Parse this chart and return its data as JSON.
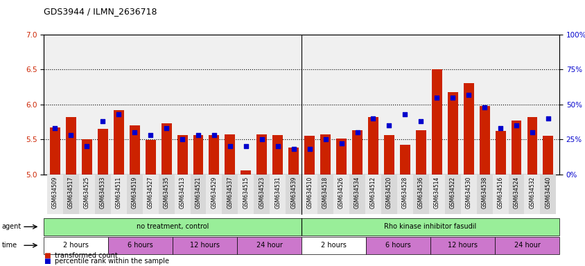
{
  "title": "GDS3944 / ILMN_2636718",
  "samples": [
    "GSM634509",
    "GSM634517",
    "GSM634525",
    "GSM634533",
    "GSM634511",
    "GSM634519",
    "GSM634527",
    "GSM634535",
    "GSM634513",
    "GSM634521",
    "GSM634529",
    "GSM634537",
    "GSM634515",
    "GSM634523",
    "GSM634531",
    "GSM634539",
    "GSM634510",
    "GSM634518",
    "GSM634526",
    "GSM634534",
    "GSM634512",
    "GSM634520",
    "GSM634528",
    "GSM634536",
    "GSM634514",
    "GSM634522",
    "GSM634530",
    "GSM634538",
    "GSM634516",
    "GSM634524",
    "GSM634532",
    "GSM634540"
  ],
  "bar_values": [
    5.67,
    5.82,
    5.5,
    5.65,
    5.92,
    5.7,
    5.49,
    5.73,
    5.56,
    5.56,
    5.56,
    5.57,
    5.05,
    5.57,
    5.56,
    5.38,
    5.55,
    5.57,
    5.51,
    5.63,
    5.82,
    5.56,
    5.42,
    5.63,
    6.5,
    6.18,
    6.3,
    5.98,
    5.62,
    5.77,
    5.82,
    5.55
  ],
  "percentile_values": [
    33,
    28,
    20,
    38,
    43,
    30,
    28,
    33,
    25,
    28,
    28,
    20,
    20,
    25,
    20,
    18,
    18,
    25,
    22,
    30,
    40,
    35,
    43,
    38,
    55,
    55,
    57,
    48,
    33,
    35,
    30,
    40
  ],
  "bar_color": "#cc2200",
  "dot_color": "#0000cc",
  "ylim_left": [
    5.0,
    7.0
  ],
  "ylim_right": [
    0,
    100
  ],
  "yticks_left": [
    5.0,
    5.5,
    6.0,
    6.5,
    7.0
  ],
  "yticks_right": [
    0,
    25,
    50,
    75,
    100
  ],
  "agent_groups": [
    {
      "label": "no treatment, control",
      "start": 0,
      "end": 16
    },
    {
      "label": "Rho kinase inhibitor fasudil",
      "start": 16,
      "end": 32
    }
  ],
  "agent_color": "#99ee99",
  "time_groups": [
    {
      "label": "2 hours",
      "start": 0,
      "end": 4,
      "color": "#ffffff"
    },
    {
      "label": "6 hours",
      "start": 4,
      "end": 8,
      "color": "#cc77cc"
    },
    {
      "label": "12 hours",
      "start": 8,
      "end": 12,
      "color": "#cc77cc"
    },
    {
      "label": "24 hour",
      "start": 12,
      "end": 16,
      "color": "#cc77cc"
    },
    {
      "label": "2 hours",
      "start": 16,
      "end": 20,
      "color": "#ffffff"
    },
    {
      "label": "6 hours",
      "start": 20,
      "end": 24,
      "color": "#cc77cc"
    },
    {
      "label": "12 hours",
      "start": 24,
      "end": 28,
      "color": "#cc77cc"
    },
    {
      "label": "24 hour",
      "start": 28,
      "end": 32,
      "color": "#cc77cc"
    }
  ],
  "bar_bottom": 5.0,
  "chart_bg": "#f0f0f0",
  "label_fontsize": 7,
  "tick_fontsize": 7.5,
  "sample_fontsize": 5.5,
  "legend_items": [
    {
      "label": "transformed count",
      "color": "#cc2200"
    },
    {
      "label": "percentile rank within the sample",
      "color": "#0000cc"
    }
  ]
}
